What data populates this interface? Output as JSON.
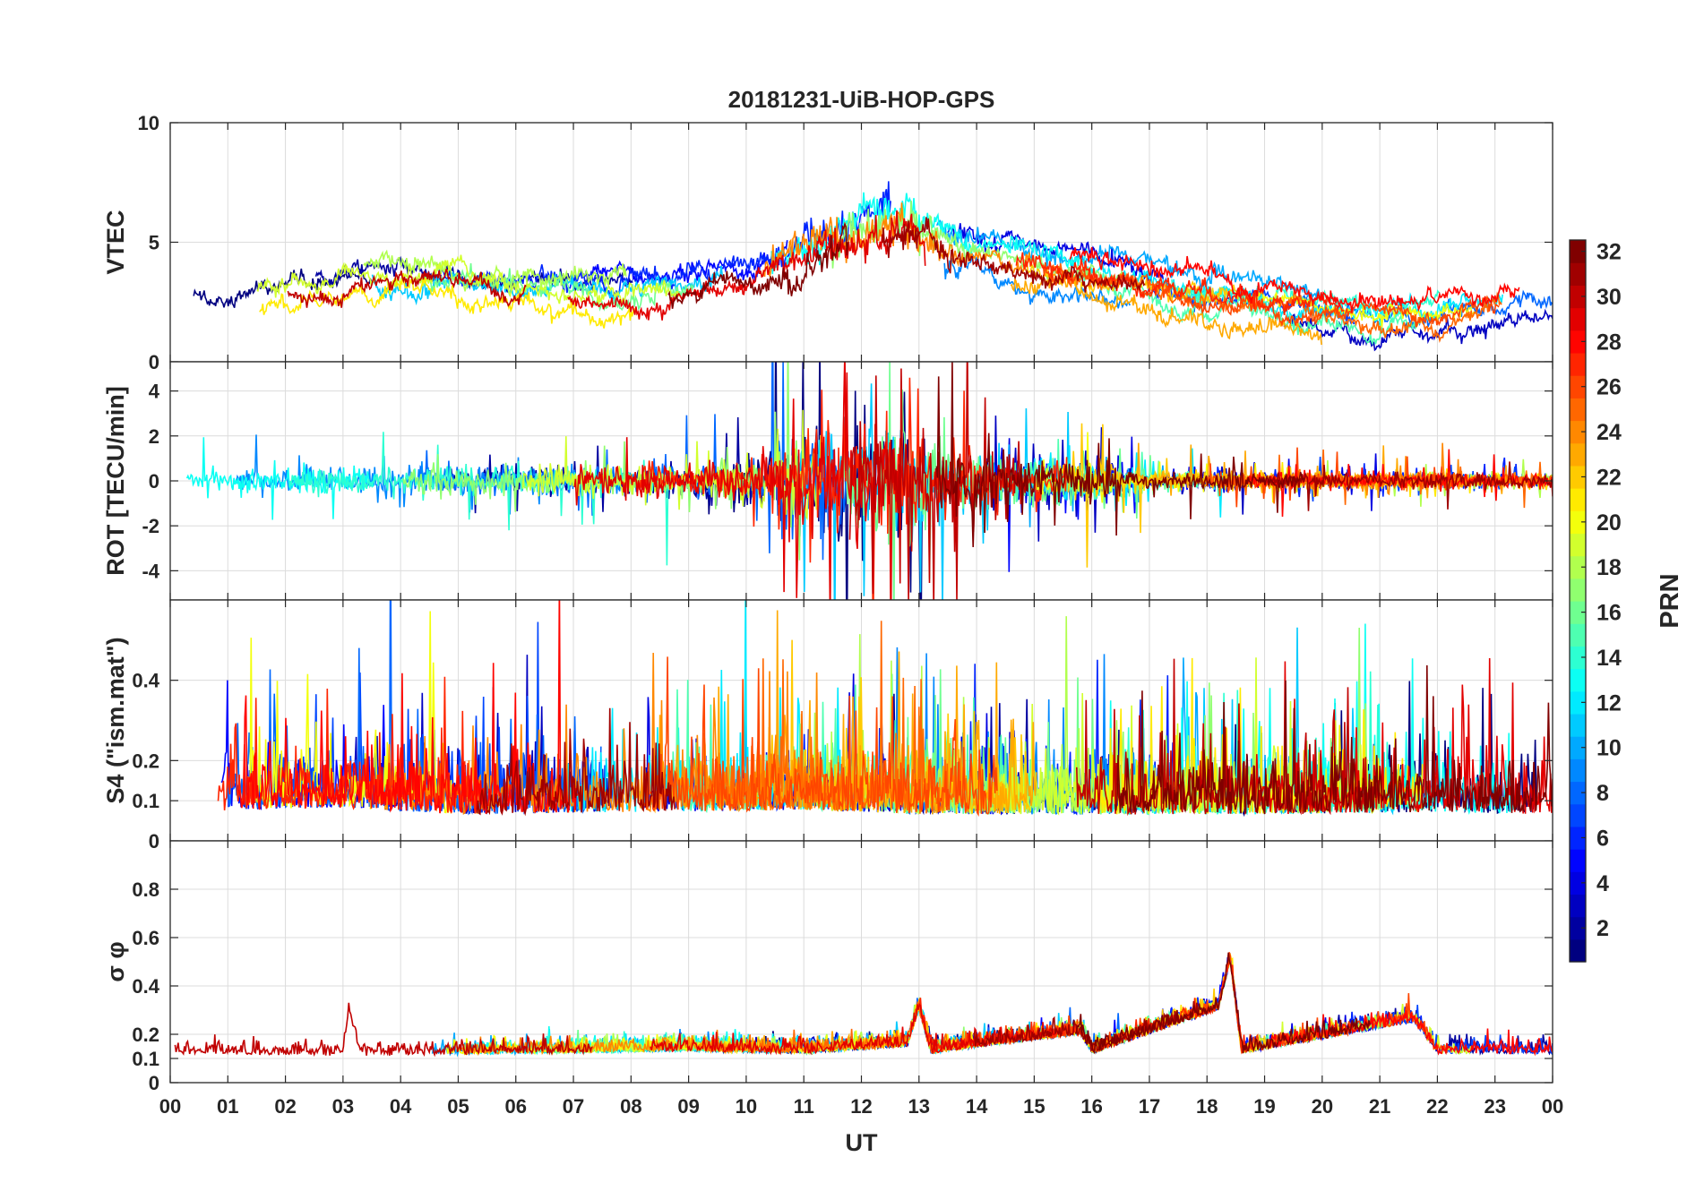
{
  "chart_data": {
    "type": "line",
    "title": "20181231-UiB-HOP-GPS",
    "xlabel": "UT",
    "xlim": [
      0,
      24
    ],
    "x_tick_labels": [
      "00",
      "01",
      "02",
      "03",
      "04",
      "05",
      "06",
      "07",
      "08",
      "09",
      "10",
      "11",
      "12",
      "13",
      "14",
      "15",
      "16",
      "17",
      "18",
      "19",
      "20",
      "21",
      "22",
      "23",
      "00"
    ],
    "grid": true,
    "series_count": 32,
    "colormap": "jet",
    "panels": [
      {
        "id": "vtec",
        "ylabel": "VTEC",
        "ylim": [
          0,
          10
        ],
        "yticks": [
          0,
          5,
          10
        ],
        "ytick_labels": [
          "0",
          "5",
          "10"
        ],
        "profile": [
          [
            0,
            3.0
          ],
          [
            1,
            2.6
          ],
          [
            2,
            3.3
          ],
          [
            3,
            3.7
          ],
          [
            4,
            3.6
          ],
          [
            5,
            3.4
          ],
          [
            6,
            3.2
          ],
          [
            7,
            3.1
          ],
          [
            8,
            3.0
          ],
          [
            9,
            3.0
          ],
          [
            10,
            3.4
          ],
          [
            11,
            4.5
          ],
          [
            12,
            5.6
          ],
          [
            12.8,
            5.6
          ],
          [
            13.5,
            4.8
          ],
          [
            14,
            4.5
          ],
          [
            15,
            4.0
          ],
          [
            16,
            3.6
          ],
          [
            17,
            3.2
          ],
          [
            18,
            2.8
          ],
          [
            19,
            2.6
          ],
          [
            20,
            2.2
          ],
          [
            21,
            1.9
          ],
          [
            22,
            2.2
          ],
          [
            23,
            2.6
          ],
          [
            24,
            2.9
          ]
        ],
        "noise": 0.15,
        "noise_profile": [
          [
            0,
            0.3
          ],
          [
            10,
            0.4
          ],
          [
            11.5,
            1.0
          ],
          [
            13,
            1.0
          ],
          [
            14,
            0.4
          ],
          [
            24,
            0.3
          ]
        ]
      },
      {
        "id": "rot",
        "ylabel": "ROT [TECU/min]",
        "ylim": [
          -5.3,
          5.3
        ],
        "yticks": [
          -4,
          -2,
          0,
          2,
          4
        ],
        "ytick_labels": [
          "-4",
          "-2",
          "0",
          "2",
          "4"
        ],
        "profile": [
          [
            0,
            0
          ],
          [
            24,
            0
          ]
        ],
        "noise": 0.25,
        "noise_profile": [
          [
            0,
            0.4
          ],
          [
            5,
            0.5
          ],
          [
            9,
            0.5
          ],
          [
            10,
            0.8
          ],
          [
            11.5,
            2.0
          ],
          [
            13,
            1.8
          ],
          [
            14.5,
            0.8
          ],
          [
            16,
            0.7
          ],
          [
            17,
            0.3
          ],
          [
            24,
            0.25
          ]
        ]
      },
      {
        "id": "s4",
        "ylabel": "S4 (\"ism.mat\")",
        "ylim": [
          0,
          0.6
        ],
        "yticks": [
          0,
          0.1,
          0.2,
          0.4
        ],
        "ytick_labels": [
          "0",
          "0.1",
          "0.2",
          "0.4"
        ],
        "profile": [
          [
            0,
            0.13
          ],
          [
            3,
            0.15
          ],
          [
            5,
            0.12
          ],
          [
            8,
            0.13
          ],
          [
            11,
            0.14
          ],
          [
            13,
            0.12
          ],
          [
            16,
            0.12
          ],
          [
            19,
            0.12
          ],
          [
            22,
            0.13
          ],
          [
            24,
            0.12
          ]
        ],
        "noise": 0.06,
        "noise_profile": [
          [
            0,
            0.07
          ],
          [
            24,
            0.07
          ]
        ]
      },
      {
        "id": "sigma",
        "ylabel": "σ φ",
        "ylim": [
          0,
          1
        ],
        "yticks": [
          0,
          0.1,
          0.2,
          0.4,
          0.6,
          0.8
        ],
        "ytick_labels": [
          "0",
          "0.1",
          "0.2",
          "0.4",
          "0.6",
          "0.8"
        ],
        "profile": [
          [
            0,
            0.12
          ],
          [
            3,
            0.11
          ],
          [
            3.1,
            0.3
          ],
          [
            3.3,
            0.11
          ],
          [
            9,
            0.13
          ],
          [
            11,
            0.12
          ],
          [
            12.8,
            0.15
          ],
          [
            13,
            0.3
          ],
          [
            13.2,
            0.12
          ],
          [
            15.8,
            0.2
          ],
          [
            16,
            0.12
          ],
          [
            18.2,
            0.3
          ],
          [
            18.4,
            0.5
          ],
          [
            18.6,
            0.12
          ],
          [
            21.6,
            0.25
          ],
          [
            22,
            0.12
          ],
          [
            24,
            0.12
          ]
        ],
        "noise": 0.02,
        "noise_profile": [
          [
            0,
            0.03
          ],
          [
            24,
            0.03
          ]
        ]
      }
    ],
    "colorbar": {
      "label": "PRN",
      "range": [
        1,
        32
      ],
      "ticks": [
        2,
        4,
        6,
        8,
        10,
        12,
        14,
        16,
        18,
        20,
        22,
        24,
        26,
        28,
        30,
        32
      ],
      "tick_labels": [
        "2",
        "4",
        "6",
        "8",
        "10",
        "12",
        "14",
        "16",
        "18",
        "20",
        "22",
        "24",
        "26",
        "28",
        "30",
        "32"
      ]
    }
  }
}
